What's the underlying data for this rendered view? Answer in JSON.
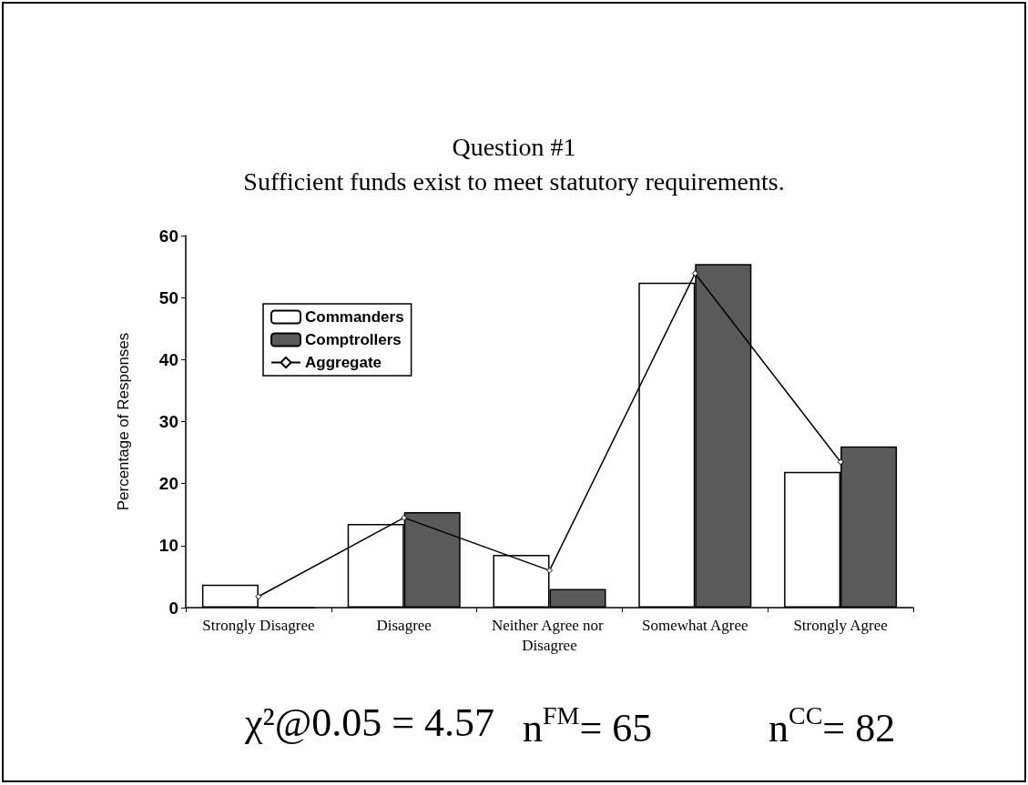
{
  "chart_data": {
    "type": "bar",
    "title": "Question #1",
    "subtitle": "Sufficient funds exist to meet statutory requirements.",
    "ylabel": "Percentage of Responses",
    "categories": [
      "Strongly Disagree",
      "Disagree",
      "Neither Agree nor Disagree",
      "Somewhat Agree",
      "Strongly Agree"
    ],
    "series": [
      {
        "name": "Commanders",
        "color": "#ffffff",
        "values": [
          3.7,
          13.5,
          8.5,
          52.4,
          21.9
        ]
      },
      {
        "name": "Comptrollers",
        "color": "#5a5a5a",
        "values": [
          0,
          15.4,
          3,
          55.4,
          26
        ]
      },
      {
        "name": "Aggregate",
        "type": "line",
        "color": "#000000",
        "values": [
          1.8,
          14.5,
          6,
          53.9,
          23.5
        ]
      }
    ],
    "ylim": [
      0,
      60
    ],
    "yticks": [
      0,
      10,
      20,
      30,
      40,
      50,
      60
    ],
    "grid": false,
    "legend": "top left",
    "marker": "diamond",
    "annotations": [
      "χ²@0.05 = 4.57",
      "n$^{FM}$= 65",
      "n$^{CC}$= 82"
    ]
  }
}
